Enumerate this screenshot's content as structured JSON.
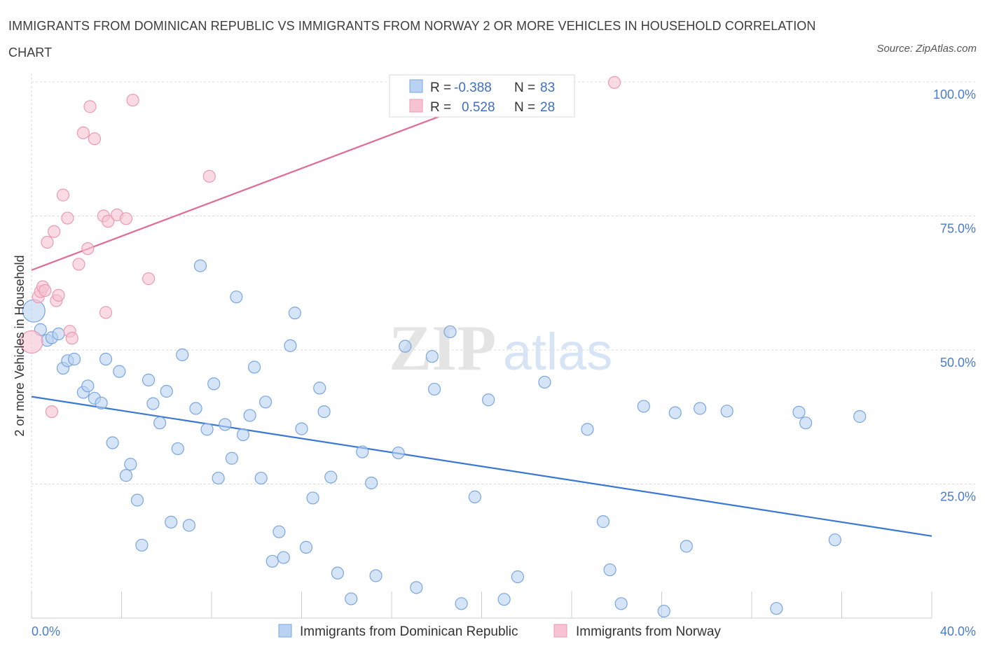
{
  "header": {
    "title": "IMMIGRANTS FROM DOMINICAN REPUBLIC VS IMMIGRANTS FROM NORWAY 2 OR MORE VEHICLES IN HOUSEHOLD CORRELATION CHART",
    "source": "Source: ZipAtlas.com"
  },
  "watermark": {
    "zip": "ZIP",
    "atlas": "atlas"
  },
  "colors": {
    "blue_fill": "#b9d2f2",
    "blue_stroke": "#7aa6e0",
    "blue_line": "#3a78d4",
    "pink_fill": "#f7c3d2",
    "pink_stroke": "#ec9ab2",
    "pink_line": "#e06c92",
    "grid": "#d9d9d9",
    "axis_label": "#4a7cc9"
  },
  "legend": {
    "rows": [
      {
        "r_label": "R =",
        "r_value": "-0.388",
        "n_label": "N =",
        "n_value": "83",
        "color": "blue"
      },
      {
        "r_label": "R =",
        "r_value": "0.528",
        "n_label": "N =",
        "n_value": "28",
        "color": "pink"
      }
    ]
  },
  "bottom_legend": [
    {
      "label": "Immigrants from Dominican Republic",
      "color": "blue"
    },
    {
      "label": "Immigrants from Norway",
      "color": "pink"
    }
  ],
  "chart_data": {
    "type": "scatter",
    "title": "IMMIGRANTS FROM DOMINICAN REPUBLIC VS IMMIGRANTS FROM NORWAY 2 OR MORE VEHICLES IN HOUSEHOLD CORRELATION CHART",
    "xlabel": "",
    "ylabel": "2 or more Vehicles in Household",
    "xlim": [
      0,
      40
    ],
    "ylim": [
      0,
      100
    ],
    "x_ticks": [
      {
        "value": 0,
        "label": "0.0%"
      },
      {
        "value": 40,
        "label": "40.0%"
      }
    ],
    "y_ticks": [
      {
        "value": 25,
        "label": "25.0%"
      },
      {
        "value": 50,
        "label": "50.0%"
      },
      {
        "value": 75,
        "label": "75.0%"
      },
      {
        "value": 100,
        "label": "100.0%"
      }
    ],
    "grid": true,
    "legend_position": "top-center",
    "series": [
      {
        "name": "Immigrants from Dominican Republic",
        "color": "blue",
        "r": -0.388,
        "n": 83,
        "trend": {
          "x": [
            0,
            40
          ],
          "y": [
            41.3,
            15.3
          ]
        },
        "points": [
          {
            "x": 0.1,
            "y": 57.3,
            "big": true
          },
          {
            "x": 0.4,
            "y": 53.8
          },
          {
            "x": 0.7,
            "y": 51.8
          },
          {
            "x": 0.9,
            "y": 52.3
          },
          {
            "x": 1.2,
            "y": 53.0
          },
          {
            "x": 1.4,
            "y": 46.6
          },
          {
            "x": 1.6,
            "y": 48.0
          },
          {
            "x": 1.9,
            "y": 48.3
          },
          {
            "x": 2.3,
            "y": 42.1
          },
          {
            "x": 2.5,
            "y": 43.3
          },
          {
            "x": 2.8,
            "y": 41.0
          },
          {
            "x": 3.1,
            "y": 40.1
          },
          {
            "x": 3.3,
            "y": 48.3
          },
          {
            "x": 3.6,
            "y": 32.7
          },
          {
            "x": 3.9,
            "y": 46.0
          },
          {
            "x": 4.2,
            "y": 26.6
          },
          {
            "x": 4.4,
            "y": 28.7
          },
          {
            "x": 4.7,
            "y": 22.0
          },
          {
            "x": 4.9,
            "y": 13.6
          },
          {
            "x": 5.2,
            "y": 44.4
          },
          {
            "x": 5.4,
            "y": 40.0
          },
          {
            "x": 5.7,
            "y": 36.4
          },
          {
            "x": 6.0,
            "y": 42.3
          },
          {
            "x": 6.2,
            "y": 17.9
          },
          {
            "x": 6.5,
            "y": 31.6
          },
          {
            "x": 6.7,
            "y": 49.1
          },
          {
            "x": 7.0,
            "y": 17.3
          },
          {
            "x": 7.3,
            "y": 39.1
          },
          {
            "x": 7.5,
            "y": 65.7
          },
          {
            "x": 7.8,
            "y": 35.2
          },
          {
            "x": 8.1,
            "y": 43.7
          },
          {
            "x": 8.3,
            "y": 26.1
          },
          {
            "x": 8.6,
            "y": 36.1
          },
          {
            "x": 8.9,
            "y": 29.8
          },
          {
            "x": 9.1,
            "y": 59.9
          },
          {
            "x": 9.4,
            "y": 34.2
          },
          {
            "x": 9.7,
            "y": 37.8
          },
          {
            "x": 9.9,
            "y": 46.8
          },
          {
            "x": 10.2,
            "y": 26.1
          },
          {
            "x": 10.4,
            "y": 40.3
          },
          {
            "x": 10.7,
            "y": 10.6
          },
          {
            "x": 11.0,
            "y": 16.1
          },
          {
            "x": 11.2,
            "y": 11.3
          },
          {
            "x": 11.5,
            "y": 50.8
          },
          {
            "x": 11.7,
            "y": 56.9
          },
          {
            "x": 12.0,
            "y": 35.3
          },
          {
            "x": 12.2,
            "y": 13.2
          },
          {
            "x": 12.5,
            "y": 22.4
          },
          {
            "x": 12.8,
            "y": 42.9
          },
          {
            "x": 13.0,
            "y": 38.5
          },
          {
            "x": 13.3,
            "y": 26.3
          },
          {
            "x": 13.6,
            "y": 8.4
          },
          {
            "x": 14.2,
            "y": 3.6
          },
          {
            "x": 14.7,
            "y": 31.0
          },
          {
            "x": 15.1,
            "y": 25.2
          },
          {
            "x": 15.3,
            "y": 7.9
          },
          {
            "x": 16.3,
            "y": 30.8
          },
          {
            "x": 16.6,
            "y": 50.7
          },
          {
            "x": 17.1,
            "y": 5.7
          },
          {
            "x": 17.8,
            "y": 48.8
          },
          {
            "x": 17.9,
            "y": 42.7
          },
          {
            "x": 18.6,
            "y": 53.4
          },
          {
            "x": 19.1,
            "y": 2.7
          },
          {
            "x": 19.7,
            "y": 22.6
          },
          {
            "x": 20.3,
            "y": 40.7
          },
          {
            "x": 21.0,
            "y": 3.5
          },
          {
            "x": 21.6,
            "y": 7.7
          },
          {
            "x": 22.8,
            "y": 44.0
          },
          {
            "x": 24.7,
            "y": 35.2
          },
          {
            "x": 25.4,
            "y": 18.0
          },
          {
            "x": 25.7,
            "y": 9.0
          },
          {
            "x": 26.2,
            "y": 2.7
          },
          {
            "x": 27.2,
            "y": 39.5
          },
          {
            "x": 28.1,
            "y": 1.3
          },
          {
            "x": 28.6,
            "y": 38.3
          },
          {
            "x": 29.1,
            "y": 13.4
          },
          {
            "x": 29.7,
            "y": 39.1
          },
          {
            "x": 30.9,
            "y": 38.6
          },
          {
            "x": 33.1,
            "y": 1.8
          },
          {
            "x": 34.1,
            "y": 38.4
          },
          {
            "x": 34.4,
            "y": 36.4
          },
          {
            "x": 35.7,
            "y": 14.6
          },
          {
            "x": 36.8,
            "y": 37.6
          }
        ]
      },
      {
        "name": "Immigrants from Norway",
        "color": "pink",
        "r": 0.528,
        "n": 28,
        "trend": {
          "x": [
            0,
            22.2
          ],
          "y": [
            64.9,
            100
          ]
        },
        "points": [
          {
            "x": 0.0,
            "y": 51.5,
            "big": true
          },
          {
            "x": 0.3,
            "y": 59.9
          },
          {
            "x": 0.4,
            "y": 60.9
          },
          {
            "x": 0.5,
            "y": 61.8
          },
          {
            "x": 0.6,
            "y": 61.1
          },
          {
            "x": 0.7,
            "y": 70.1
          },
          {
            "x": 0.9,
            "y": 38.5
          },
          {
            "x": 1.0,
            "y": 72.1
          },
          {
            "x": 1.1,
            "y": 59.2
          },
          {
            "x": 1.2,
            "y": 60.2
          },
          {
            "x": 1.4,
            "y": 78.9
          },
          {
            "x": 1.6,
            "y": 74.6
          },
          {
            "x": 1.7,
            "y": 53.5
          },
          {
            "x": 1.8,
            "y": 52.2
          },
          {
            "x": 2.1,
            "y": 66.0
          },
          {
            "x": 2.3,
            "y": 90.5
          },
          {
            "x": 2.5,
            "y": 68.9
          },
          {
            "x": 2.6,
            "y": 95.4
          },
          {
            "x": 2.8,
            "y": 89.4
          },
          {
            "x": 3.2,
            "y": 75.0
          },
          {
            "x": 3.3,
            "y": 57.0
          },
          {
            "x": 3.4,
            "y": 74.0
          },
          {
            "x": 3.8,
            "y": 75.2
          },
          {
            "x": 4.2,
            "y": 74.5
          },
          {
            "x": 4.5,
            "y": 96.6
          },
          {
            "x": 5.2,
            "y": 63.3
          },
          {
            "x": 7.9,
            "y": 82.4
          },
          {
            "x": 25.9,
            "y": 99.9
          }
        ]
      }
    ]
  }
}
